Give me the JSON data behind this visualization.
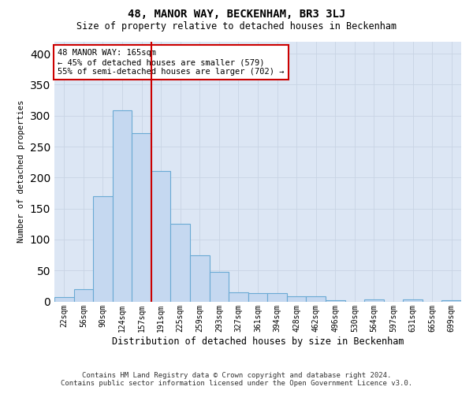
{
  "title": "48, MANOR WAY, BECKENHAM, BR3 3LJ",
  "subtitle": "Size of property relative to detached houses in Beckenham",
  "xlabel": "Distribution of detached houses by size in Beckenham",
  "ylabel": "Number of detached properties",
  "bar_labels": [
    "22sqm",
    "56sqm",
    "90sqm",
    "124sqm",
    "157sqm",
    "191sqm",
    "225sqm",
    "259sqm",
    "293sqm",
    "327sqm",
    "361sqm",
    "394sqm",
    "428sqm",
    "462sqm",
    "496sqm",
    "530sqm",
    "564sqm",
    "597sqm",
    "631sqm",
    "665sqm",
    "699sqm"
  ],
  "bar_values": [
    7,
    20,
    170,
    308,
    272,
    210,
    125,
    75,
    48,
    15,
    13,
    13,
    8,
    8,
    2,
    0,
    3,
    0,
    3,
    0,
    2
  ],
  "bar_color": "#c5d8f0",
  "bar_edge_color": "#6aaad4",
  "vline_bar_index": 4,
  "vline_color": "#cc0000",
  "annotation_text": "48 MANOR WAY: 165sqm\n← 45% of detached houses are smaller (579)\n55% of semi-detached houses are larger (702) →",
  "annotation_box_facecolor": "#ffffff",
  "annotation_box_edgecolor": "#cc0000",
  "ylim": [
    0,
    420
  ],
  "yticks": [
    0,
    50,
    100,
    150,
    200,
    250,
    300,
    350,
    400
  ],
  "grid_color": "#c8d4e4",
  "plot_bg_color": "#dce6f4",
  "footer_line1": "Contains HM Land Registry data © Crown copyright and database right 2024.",
  "footer_line2": "Contains public sector information licensed under the Open Government Licence v3.0."
}
